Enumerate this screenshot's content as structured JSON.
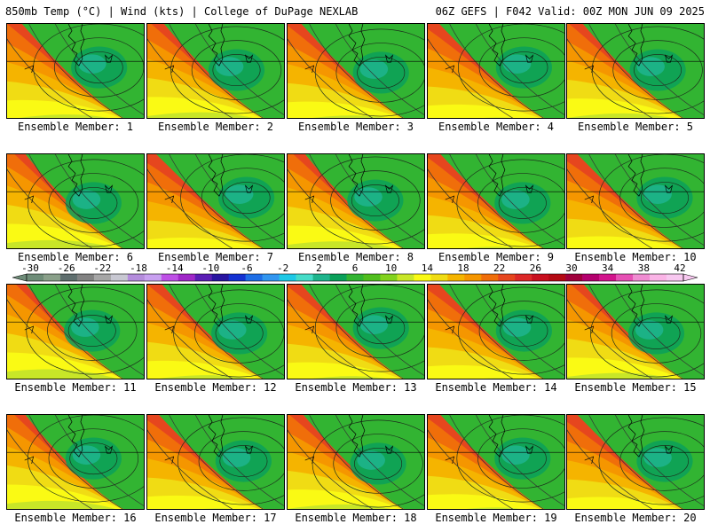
{
  "header": {
    "left": "850mb Temp (°C) | Wind (kts) | College of DuPage NEXLAB",
    "right": "06Z GEFS | F042 Valid: 00Z MON JUN 09 2025"
  },
  "members": [
    "Ensemble Member: 1",
    "Ensemble Member: 2",
    "Ensemble Member: 3",
    "Ensemble Member: 4",
    "Ensemble Member: 5",
    "Ensemble Member: 6",
    "Ensemble Member: 7",
    "Ensemble Member: 8",
    "Ensemble Member: 9",
    "Ensemble Member: 10",
    "Ensemble Member: 11",
    "Ensemble Member: 12",
    "Ensemble Member: 13",
    "Ensemble Member: 14",
    "Ensemble Member: 15",
    "Ensemble Member: 16",
    "Ensemble Member: 17",
    "Ensemble Member: 18",
    "Ensemble Member: 19",
    "Ensemble Member: 20"
  ],
  "colorbar": {
    "labels": [
      "-30",
      "-26",
      "-22",
      "-18",
      "-14",
      "-10",
      "-6",
      "-2",
      "2",
      "6",
      "10",
      "14",
      "18",
      "22",
      "26",
      "30",
      "34",
      "38",
      "42"
    ],
    "colors": [
      "#6e8c78",
      "#8aa08a",
      "#5f6e6e",
      "#828282",
      "#a6a6a6",
      "#c8c8d2",
      "#b48cdc",
      "#c8a0f0",
      "#be50e6",
      "#a028c8",
      "#5a1eb4",
      "#2814a0",
      "#1432d2",
      "#1e6ee6",
      "#3296f0",
      "#1ec8e6",
      "#46dcc8",
      "#1eb48c",
      "#0aa05a",
      "#32b432",
      "#50be1e",
      "#82d21e",
      "#c8e628",
      "#fafa14",
      "#f0dc14",
      "#f5b400",
      "#f59600",
      "#f06e0a",
      "#e6461e",
      "#dc2828",
      "#c80f1e",
      "#b40a14",
      "#a0003c",
      "#b4006e",
      "#d2148c",
      "#e650b4",
      "#f08cd2",
      "#fab4e6",
      "#f8c8f0"
    ]
  }
}
